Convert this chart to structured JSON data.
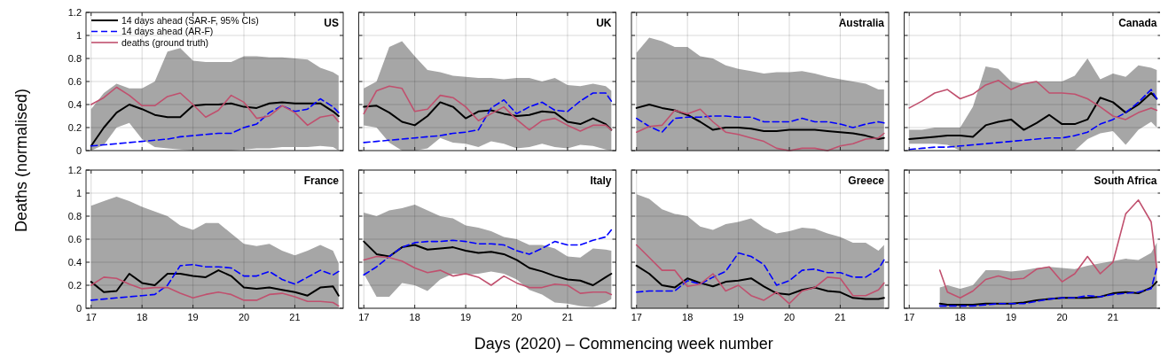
{
  "chart_data": [
    {
      "type": "line",
      "title": "US",
      "ylabel": "Deaths (normalised)",
      "legend": "top left",
      "grid": true,
      "tick_labels": "y",
      "xlim": [
        16.9,
        21.95
      ],
      "xticks": [
        17,
        18,
        19,
        20,
        21
      ],
      "ylim": [
        0,
        1.2
      ],
      "yticks": [
        0,
        0.2,
        0.4,
        0.6,
        0.8,
        1,
        1.2
      ],
      "x": [
        17,
        17.25,
        17.5,
        17.75,
        18,
        18.25,
        18.5,
        18.75,
        19,
        19.25,
        19.5,
        19.75,
        20,
        20.25,
        20.5,
        20.75,
        21,
        21.25,
        21.5,
        21.75,
        21.86
      ],
      "series": [
        {
          "name": "14 days ahead (SAR-F, 95% CIs)",
          "color": "#000000",
          "line_style": "solid",
          "values": [
            0.04,
            0.2,
            0.33,
            0.4,
            0.36,
            0.31,
            0.29,
            0.29,
            0.39,
            0.4,
            0.4,
            0.41,
            0.38,
            0.37,
            0.41,
            0.42,
            0.41,
            0.41,
            0.41,
            0.34,
            0.3
          ],
          "upper": [
            0.36,
            0.5,
            0.58,
            0.54,
            0.54,
            0.6,
            0.86,
            0.89,
            0.78,
            0.77,
            0.77,
            0.77,
            0.82,
            0.82,
            0.81,
            0.81,
            0.8,
            0.79,
            0.72,
            0.68,
            0.65
          ],
          "lower": [
            0,
            0.05,
            0.2,
            0.24,
            0.1,
            0.03,
            0.02,
            0.01,
            0,
            0,
            0,
            0,
            0.01,
            0.02,
            0.02,
            0.03,
            0.03,
            0.03,
            0.04,
            0.03,
            0
          ]
        },
        {
          "name": "14 days ahead (AR-F)",
          "color": "#0000ff",
          "line_style": "dashed",
          "values": [
            0.04,
            0.05,
            0.06,
            0.07,
            0.08,
            0.09,
            0.1,
            0.12,
            0.13,
            0.14,
            0.15,
            0.15,
            0.2,
            0.23,
            0.33,
            0.39,
            0.34,
            0.36,
            0.45,
            0.38,
            0.33
          ]
        },
        {
          "name": "deaths (ground truth)",
          "color": "#c0506e",
          "line_style": "solid",
          "values": [
            0.4,
            0.46,
            0.55,
            0.48,
            0.39,
            0.39,
            0.47,
            0.5,
            0.4,
            0.29,
            0.35,
            0.48,
            0.42,
            0.28,
            0.3,
            0.39,
            0.33,
            0.22,
            0.29,
            0.31,
            0.25
          ]
        }
      ]
    },
    {
      "type": "line",
      "title": "UK",
      "grid": true,
      "tick_labels": false,
      "xlim": [
        16.9,
        21.95
      ],
      "xticks": [
        17,
        18,
        19,
        20,
        21
      ],
      "ylim": [
        0,
        1.2
      ],
      "yticks": [
        0,
        0.2,
        0.4,
        0.6,
        0.8,
        1,
        1.2
      ],
      "x": [
        17,
        17.25,
        17.5,
        17.75,
        18,
        18.25,
        18.5,
        18.75,
        19,
        19.25,
        19.5,
        19.75,
        20,
        20.25,
        20.5,
        20.75,
        21,
        21.25,
        21.5,
        21.75,
        21.86
      ],
      "series": [
        {
          "color": "#000000",
          "line_style": "solid",
          "values": [
            0.38,
            0.39,
            0.33,
            0.25,
            0.22,
            0.3,
            0.42,
            0.38,
            0.28,
            0.34,
            0.35,
            0.32,
            0.3,
            0.31,
            0.34,
            0.33,
            0.25,
            0.23,
            0.28,
            0.23,
            0.18
          ],
          "upper": [
            0.54,
            0.6,
            0.9,
            0.95,
            0.82,
            0.7,
            0.68,
            0.65,
            0.64,
            0.63,
            0.63,
            0.62,
            0.63,
            0.63,
            0.6,
            0.63,
            0.57,
            0.56,
            0.58,
            0.56,
            0.52
          ],
          "lower": [
            0.22,
            0.2,
            0.07,
            0,
            0,
            0.02,
            0.11,
            0.07,
            0.06,
            0.03,
            0.08,
            0.06,
            0.02,
            0.03,
            0.06,
            0.03,
            0.02,
            0.05,
            0.04,
            0.01,
            0
          ]
        },
        {
          "color": "#0000ff",
          "line_style": "dashed",
          "values": [
            0.07,
            0.08,
            0.09,
            0.1,
            0.11,
            0.12,
            0.13,
            0.15,
            0.16,
            0.18,
            0.37,
            0.44,
            0.32,
            0.38,
            0.42,
            0.35,
            0.34,
            0.43,
            0.5,
            0.5,
            0.43
          ]
        },
        {
          "color": "#c0506e",
          "line_style": "solid",
          "values": [
            0.32,
            0.52,
            0.56,
            0.54,
            0.34,
            0.36,
            0.48,
            0.46,
            0.38,
            0.26,
            0.32,
            0.38,
            0.27,
            0.18,
            0.26,
            0.28,
            0.22,
            0.17,
            0.22,
            0.22,
            0.18
          ]
        }
      ]
    },
    {
      "type": "line",
      "title": "Australia",
      "grid": true,
      "tick_labels": false,
      "xlim": [
        16.9,
        21.95
      ],
      "xticks": [
        17,
        18,
        19,
        20,
        21
      ],
      "ylim": [
        0,
        1.2
      ],
      "yticks": [
        0,
        0.2,
        0.4,
        0.6,
        0.8,
        1,
        1.2
      ],
      "x": [
        17,
        17.25,
        17.5,
        17.75,
        18,
        18.25,
        18.5,
        18.75,
        19,
        19.25,
        19.5,
        19.75,
        20,
        20.25,
        20.5,
        20.75,
        21,
        21.25,
        21.5,
        21.75,
        21.86
      ],
      "series": [
        {
          "color": "#000000",
          "line_style": "solid",
          "values": [
            0.37,
            0.4,
            0.37,
            0.35,
            0.31,
            0.25,
            0.18,
            0.2,
            0.2,
            0.19,
            0.17,
            0.17,
            0.18,
            0.18,
            0.18,
            0.17,
            0.16,
            0.15,
            0.13,
            0.1,
            0.11
          ],
          "upper": [
            0.85,
            0.98,
            0.95,
            0.9,
            0.9,
            0.82,
            0.8,
            0.74,
            0.71,
            0.69,
            0.67,
            0.68,
            0.68,
            0.69,
            0.67,
            0.64,
            0.62,
            0.6,
            0.58,
            0.53,
            0.53
          ],
          "lower": [
            0,
            0,
            0,
            0,
            0,
            0,
            0,
            0,
            0,
            0,
            0,
            0,
            0,
            0,
            0,
            0,
            0,
            0,
            0,
            0,
            0
          ]
        },
        {
          "color": "#0000ff",
          "line_style": "dashed",
          "values": [
            0.28,
            0.21,
            0.16,
            0.28,
            0.29,
            0.29,
            0.3,
            0.3,
            0.29,
            0.29,
            0.25,
            0.25,
            0.25,
            0.28,
            0.25,
            0.25,
            0.23,
            0.2,
            0.23,
            0.25,
            0.24
          ]
        },
        {
          "color": "#c0506e",
          "line_style": "solid",
          "values": [
            0.16,
            0.21,
            0.22,
            0.35,
            0.32,
            0.36,
            0.25,
            0.16,
            0.14,
            0.11,
            0.08,
            0.02,
            0,
            0.02,
            0.02,
            0,
            0.04,
            0.06,
            0.1,
            0.11,
            0.15
          ]
        }
      ]
    },
    {
      "type": "line",
      "title": "Canada",
      "grid": true,
      "tick_labels": false,
      "xlim": [
        16.9,
        21.95
      ],
      "xticks": [
        17,
        18,
        19,
        20,
        21
      ],
      "ylim": [
        0,
        1.2
      ],
      "yticks": [
        0,
        0.2,
        0.4,
        0.6,
        0.8,
        1,
        1.2
      ],
      "x": [
        17,
        17.25,
        17.5,
        17.75,
        18,
        18.25,
        18.5,
        18.75,
        19,
        19.25,
        19.5,
        19.75,
        20,
        20.25,
        20.5,
        20.75,
        21,
        21.25,
        21.5,
        21.75,
        21.86
      ],
      "series": [
        {
          "color": "#000000",
          "line_style": "solid",
          "values": [
            0.1,
            0.11,
            0.12,
            0.13,
            0.13,
            0.12,
            0.22,
            0.25,
            0.27,
            0.18,
            0.24,
            0.31,
            0.23,
            0.23,
            0.27,
            0.46,
            0.42,
            0.33,
            0.4,
            0.5,
            0.45
          ],
          "upper": [
            0.18,
            0.18,
            0.2,
            0.2,
            0.2,
            0.38,
            0.73,
            0.71,
            0.6,
            0.58,
            0.6,
            0.6,
            0.6,
            0.65,
            0.8,
            0.62,
            0.67,
            0.64,
            0.74,
            0.72,
            0.7
          ],
          "lower": [
            0.06,
            0.06,
            0.06,
            0.05,
            0,
            0,
            0,
            0,
            0,
            0,
            0,
            0,
            0,
            0,
            0.1,
            0.15,
            0.17,
            0.05,
            0.18,
            0.25,
            0.2
          ]
        },
        {
          "color": "#0000ff",
          "line_style": "dashed",
          "values": [
            0.01,
            0.02,
            0.03,
            0.03,
            0.04,
            0.05,
            0.06,
            0.07,
            0.08,
            0.09,
            0.1,
            0.11,
            0.11,
            0.13,
            0.16,
            0.23,
            0.27,
            0.33,
            0.42,
            0.53,
            0.45
          ]
        },
        {
          "color": "#c0506e",
          "line_style": "solid",
          "values": [
            0.37,
            0.43,
            0.5,
            0.53,
            0.45,
            0.49,
            0.57,
            0.61,
            0.53,
            0.58,
            0.6,
            0.5,
            0.5,
            0.49,
            0.45,
            0.38,
            0.3,
            0.27,
            0.33,
            0.37,
            0.35
          ]
        }
      ]
    },
    {
      "type": "line",
      "title": "France",
      "grid": true,
      "xlim": [
        16.9,
        21.95
      ],
      "xticks": [
        17,
        18,
        19,
        20,
        21
      ],
      "ylim": [
        0,
        1.2
      ],
      "yticks": [
        0,
        0.2,
        0.4,
        0.6,
        0.8,
        1,
        1.2
      ],
      "x": [
        17,
        17.25,
        17.5,
        17.75,
        18,
        18.25,
        18.5,
        18.75,
        19,
        19.25,
        19.5,
        19.75,
        20,
        20.25,
        20.5,
        20.75,
        21,
        21.25,
        21.5,
        21.75,
        21.86
      ],
      "series": [
        {
          "color": "#000000",
          "line_style": "solid",
          "values": [
            0.23,
            0.14,
            0.15,
            0.3,
            0.22,
            0.2,
            0.3,
            0.3,
            0.28,
            0.27,
            0.33,
            0.28,
            0.18,
            0.17,
            0.18,
            0.16,
            0.14,
            0.11,
            0.18,
            0.19,
            0.11
          ],
          "upper": [
            0.89,
            0.93,
            0.97,
            0.93,
            0.88,
            0.84,
            0.8,
            0.72,
            0.68,
            0.74,
            0.74,
            0.65,
            0.56,
            0.54,
            0.56,
            0.5,
            0.46,
            0.5,
            0.55,
            0.5,
            0.39
          ],
          "lower": [
            0,
            0,
            0,
            0,
            0,
            0,
            0,
            0,
            0,
            0,
            0,
            0,
            0,
            0,
            0,
            0,
            0,
            0,
            0,
            0,
            0
          ]
        },
        {
          "color": "#0000ff",
          "line_style": "dashed",
          "values": [
            0.07,
            0.08,
            0.09,
            0.1,
            0.11,
            0.12,
            0.2,
            0.37,
            0.38,
            0.36,
            0.36,
            0.35,
            0.28,
            0.28,
            0.32,
            0.25,
            0.21,
            0.27,
            0.33,
            0.29,
            0.32
          ]
        },
        {
          "color": "#c0506e",
          "line_style": "solid",
          "values": [
            0.2,
            0.27,
            0.26,
            0.21,
            0.17,
            0.18,
            0.18,
            0.13,
            0.09,
            0.12,
            0.14,
            0.12,
            0.07,
            0.07,
            0.12,
            0.13,
            0.1,
            0.06,
            0.06,
            0.05,
            0.02
          ]
        }
      ]
    },
    {
      "type": "line",
      "title": "Italy",
      "xlabel": "Days (2020) – Commencing week number",
      "grid": true,
      "tick_labels": "x",
      "xlim": [
        16.9,
        21.95
      ],
      "xticks": [
        17,
        18,
        19,
        20,
        21
      ],
      "ylim": [
        0,
        1.2
      ],
      "yticks": [
        0,
        0.2,
        0.4,
        0.6,
        0.8,
        1,
        1.2
      ],
      "x": [
        17,
        17.25,
        17.5,
        17.75,
        18,
        18.25,
        18.5,
        18.75,
        19,
        19.25,
        19.5,
        19.75,
        20,
        20.25,
        20.5,
        20.75,
        21,
        21.25,
        21.5,
        21.75,
        21.86
      ],
      "series": [
        {
          "color": "#000000",
          "line_style": "solid",
          "values": [
            0.58,
            0.47,
            0.45,
            0.53,
            0.55,
            0.51,
            0.52,
            0.53,
            0.5,
            0.48,
            0.49,
            0.47,
            0.42,
            0.35,
            0.32,
            0.28,
            0.25,
            0.24,
            0.2,
            0.27,
            0.3
          ],
          "upper": [
            0.83,
            0.8,
            0.85,
            0.87,
            0.9,
            0.85,
            0.8,
            0.78,
            0.72,
            0.7,
            0.67,
            0.62,
            0.6,
            0.55,
            0.55,
            0.52,
            0.45,
            0.44,
            0.52,
            0.51,
            0.5
          ],
          "lower": [
            0.3,
            0.1,
            0.1,
            0.22,
            0.2,
            0.15,
            0.25,
            0.3,
            0.29,
            0.3,
            0.32,
            0.3,
            0.25,
            0.16,
            0.12,
            0.05,
            0.04,
            0.02,
            0.01,
            0.05,
            0.08
          ]
        },
        {
          "color": "#0000ff",
          "line_style": "dashed",
          "values": [
            0.29,
            0.36,
            0.45,
            0.53,
            0.57,
            0.58,
            0.58,
            0.59,
            0.58,
            0.56,
            0.56,
            0.55,
            0.5,
            0.47,
            0.52,
            0.58,
            0.55,
            0.55,
            0.59,
            0.62,
            0.68
          ]
        },
        {
          "color": "#c0506e",
          "line_style": "solid",
          "values": [
            0.42,
            0.45,
            0.44,
            0.41,
            0.35,
            0.31,
            0.33,
            0.28,
            0.3,
            0.27,
            0.2,
            0.28,
            0.22,
            0.18,
            0.18,
            0.21,
            0.2,
            0.13,
            0.14,
            0.14,
            0.12
          ]
        }
      ]
    },
    {
      "type": "line",
      "title": "Greece",
      "grid": true,
      "tick_labels": "x",
      "xlim": [
        16.9,
        21.95
      ],
      "xticks": [
        17,
        18,
        19,
        20,
        21
      ],
      "ylim": [
        0,
        1.2
      ],
      "yticks": [
        0,
        0.2,
        0.4,
        0.6,
        0.8,
        1,
        1.2
      ],
      "x": [
        17,
        17.25,
        17.5,
        17.75,
        18,
        18.25,
        18.5,
        18.75,
        19,
        19.25,
        19.5,
        19.75,
        20,
        20.25,
        20.5,
        20.75,
        21,
        21.25,
        21.5,
        21.75,
        21.86
      ],
      "series": [
        {
          "color": "#000000",
          "line_style": "solid",
          "values": [
            0.37,
            0.3,
            0.2,
            0.18,
            0.26,
            0.22,
            0.19,
            0.23,
            0.24,
            0.26,
            0.19,
            0.13,
            0.12,
            0.16,
            0.18,
            0.15,
            0.14,
            0.09,
            0.08,
            0.08,
            0.09
          ],
          "upper": [
            0.99,
            0.95,
            0.86,
            0.82,
            0.8,
            0.71,
            0.68,
            0.73,
            0.75,
            0.78,
            0.7,
            0.65,
            0.67,
            0.7,
            0.69,
            0.65,
            0.62,
            0.57,
            0.57,
            0.5,
            0.55
          ],
          "lower": [
            0,
            0,
            0,
            0,
            0,
            0,
            0,
            0,
            0,
            0,
            0,
            0,
            0,
            0,
            0,
            0,
            0,
            0,
            0,
            0,
            0
          ]
        },
        {
          "color": "#0000ff",
          "line_style": "dashed",
          "values": [
            0.14,
            0.15,
            0.15,
            0.15,
            0.24,
            0.21,
            0.27,
            0.32,
            0.48,
            0.45,
            0.38,
            0.2,
            0.24,
            0.33,
            0.34,
            0.31,
            0.31,
            0.27,
            0.27,
            0.34,
            0.42
          ]
        },
        {
          "color": "#c0506e",
          "line_style": "solid",
          "values": [
            0.55,
            0.44,
            0.33,
            0.33,
            0.19,
            0.21,
            0.3,
            0.15,
            0.2,
            0.11,
            0.07,
            0.14,
            0.04,
            0.15,
            0.18,
            0.27,
            0.26,
            0.11,
            0.11,
            0.16,
            0.22
          ]
        }
      ]
    },
    {
      "type": "line",
      "title": "South Africa",
      "grid": true,
      "tick_labels": "x",
      "xlim": [
        16.9,
        21.95
      ],
      "xticks": [
        17,
        18,
        19,
        20,
        21
      ],
      "ylim": [
        0,
        1.2
      ],
      "yticks": [
        0,
        0.2,
        0.4,
        0.6,
        0.8,
        1,
        1.2
      ],
      "x": [
        17.6,
        17.75,
        18,
        18.25,
        18.5,
        18.75,
        19,
        19.25,
        19.5,
        19.75,
        20,
        20.25,
        20.5,
        20.75,
        21,
        21.25,
        21.5,
        21.75,
        21.86
      ],
      "series": [
        {
          "color": "#000000",
          "line_style": "solid",
          "values": [
            0.04,
            0.03,
            0.03,
            0.03,
            0.04,
            0.04,
            0.04,
            0.05,
            0.07,
            0.08,
            0.09,
            0.09,
            0.09,
            0.1,
            0.13,
            0.14,
            0.13,
            0.18,
            0.23
          ],
          "upper": [
            0.18,
            0.2,
            0.17,
            0.2,
            0.33,
            0.33,
            0.32,
            0.33,
            0.35,
            0.36,
            0.35,
            0.34,
            0.37,
            0.39,
            0.41,
            0.43,
            0.42,
            0.48,
            0.57
          ],
          "lower": [
            0,
            0,
            0,
            0,
            0,
            0,
            0,
            0,
            0,
            0,
            0,
            0,
            0,
            0,
            0,
            0,
            0,
            0,
            0
          ]
        },
        {
          "color": "#0000ff",
          "line_style": "dashed",
          "values": [
            0.02,
            0.02,
            0.02,
            0.02,
            0.03,
            0.04,
            0.04,
            0.04,
            0.06,
            0.08,
            0.09,
            0.09,
            0.11,
            0.1,
            0.12,
            0.13,
            0.14,
            0.17,
            0.35
          ]
        },
        {
          "color": "#c0506e",
          "line_style": "solid",
          "values": [
            0.33,
            0.14,
            0.09,
            0.15,
            0.25,
            0.28,
            0.25,
            0.26,
            0.34,
            0.36,
            0.23,
            0.3,
            0.45,
            0.3,
            0.4,
            0.82,
            0.94,
            0.75,
            0.35
          ]
        }
      ]
    }
  ]
}
